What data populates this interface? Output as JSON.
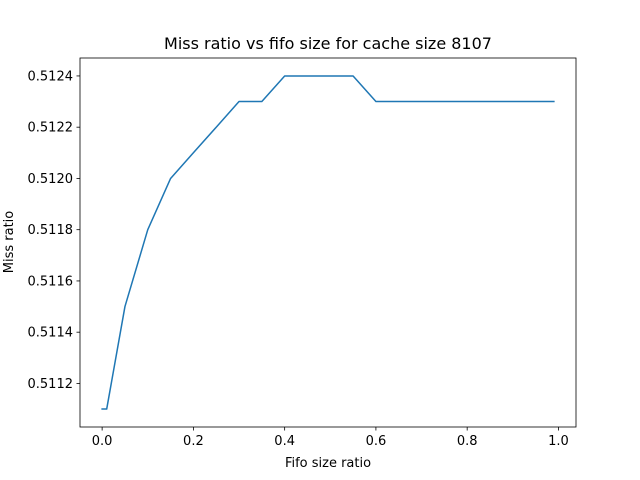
{
  "chart_data": {
    "type": "line",
    "title": "Miss ratio vs fifo size for cache size 8107",
    "xlabel": "Fifo size ratio",
    "ylabel": "Miss ratio",
    "xlim": [
      -0.0485,
      1.0385
    ],
    "ylim": [
      0.51103,
      0.51247
    ],
    "xticks": [
      0.0,
      0.2,
      0.4,
      0.6,
      0.8,
      1.0
    ],
    "xtick_labels": [
      "0.0",
      "0.2",
      "0.4",
      "0.6",
      "0.8",
      "1.0"
    ],
    "yticks": [
      0.5112,
      0.5114,
      0.5116,
      0.5118,
      0.512,
      0.5122,
      0.5124
    ],
    "ytick_labels": [
      "0.5112",
      "0.5114",
      "0.5116",
      "0.5118",
      "0.5120",
      "0.5122",
      "0.5124"
    ],
    "grid": false,
    "series": [
      {
        "color": "#1f77b4",
        "x": [
          0.0,
          0.01,
          0.02,
          0.05,
          0.1,
          0.15,
          0.2,
          0.25,
          0.3,
          0.35,
          0.4,
          0.45,
          0.5,
          0.55,
          0.6,
          0.65,
          0.7,
          0.75,
          0.8,
          0.85,
          0.9,
          0.95,
          0.99
        ],
        "y": [
          0.5111,
          0.5111,
          0.5112,
          0.5115,
          0.5118,
          0.512,
          0.5121,
          0.5122,
          0.5123,
          0.5123,
          0.5124,
          0.5124,
          0.5124,
          0.5124,
          0.5123,
          0.5123,
          0.5123,
          0.5123,
          0.5123,
          0.5123,
          0.5123,
          0.5123,
          0.5123
        ]
      }
    ]
  }
}
